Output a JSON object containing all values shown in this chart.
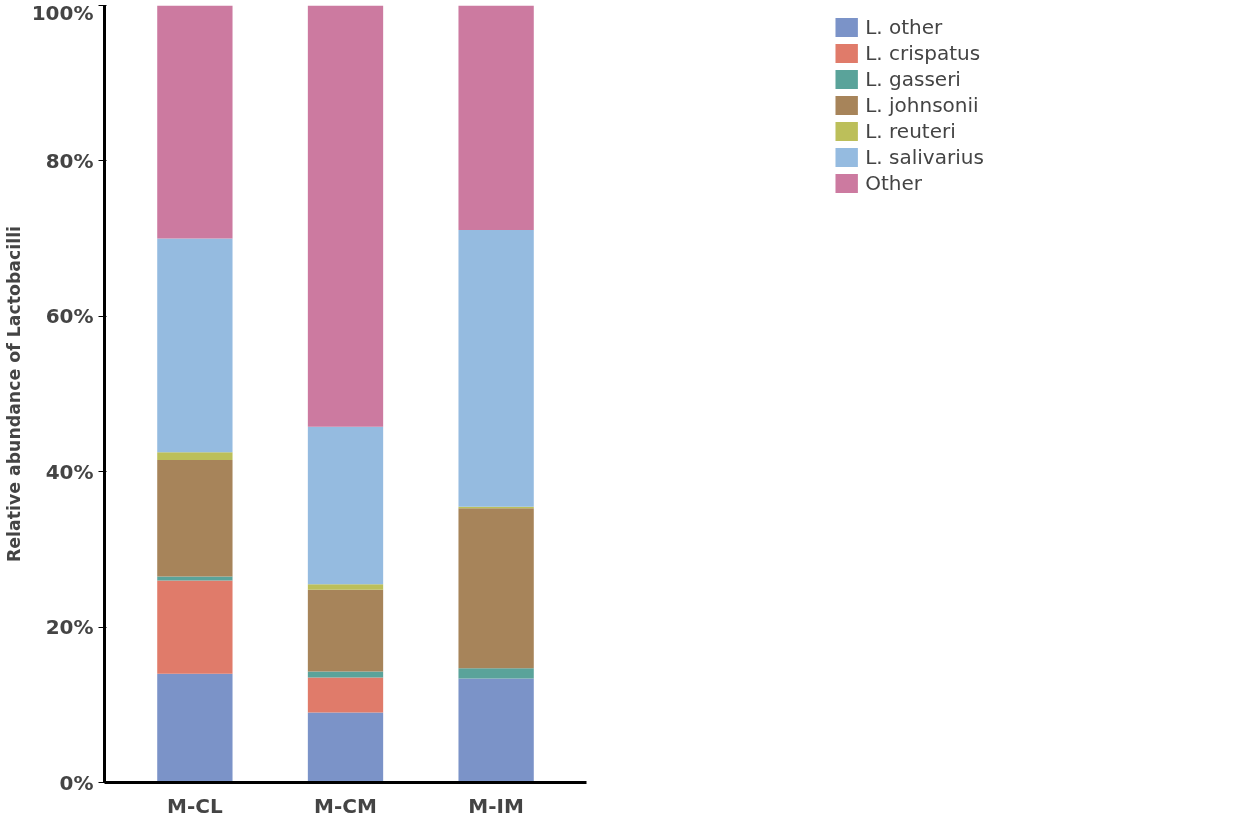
{
  "chart_data": {
    "type": "bar",
    "stacked": true,
    "ylabel": "Relative abundance of Lactobacilli",
    "categories": [
      "M-CL",
      "M-CM",
      "M-IM"
    ],
    "series": [
      {
        "name": "L. other",
        "color": "#7b93c8",
        "values": [
          14,
          9,
          13.4
        ]
      },
      {
        "name": "L. crispatus",
        "color": "#e07b6a",
        "values": [
          12,
          4.5,
          0
        ]
      },
      {
        "name": "L. gasseri",
        "color": "#5aa39a",
        "values": [
          0.5,
          0.8,
          1.3
        ]
      },
      {
        "name": "L. johnsonii",
        "color": "#a7845a",
        "values": [
          15,
          10.5,
          20.6
        ]
      },
      {
        "name": "L. reuteri",
        "color": "#bcbf5a",
        "values": [
          1,
          0.7,
          0.2
        ]
      },
      {
        "name": "L. salivarius",
        "color": "#95bbe0",
        "values": [
          27.5,
          20.3,
          35.6
        ]
      },
      {
        "name": "Other",
        "color": "#cc7aa0",
        "values": [
          30,
          54.2,
          28.9
        ]
      }
    ],
    "ylim": [
      0,
      100
    ],
    "yticks": [
      {
        "value": 0,
        "label": "0%"
      },
      {
        "value": 20,
        "label": "20%"
      },
      {
        "value": 40,
        "label": "40%"
      },
      {
        "value": 60,
        "label": "60%"
      },
      {
        "value": 80,
        "label": "80%"
      },
      {
        "value": 100,
        "label": "100%"
      }
    ],
    "grid": false,
    "legend": "top right"
  }
}
